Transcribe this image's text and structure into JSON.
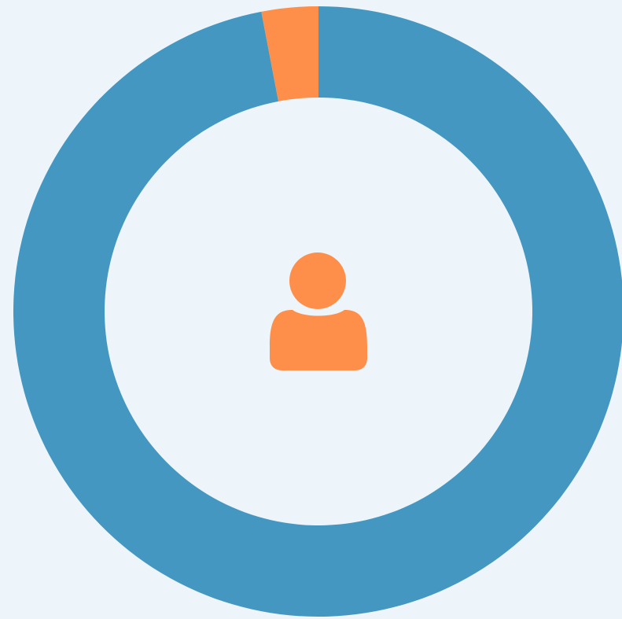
{
  "chart_data": {
    "type": "pie",
    "donut": true,
    "values": [
      97,
      3
    ],
    "colors": [
      "#4397c1",
      "#fe8f4a"
    ]
  }
}
